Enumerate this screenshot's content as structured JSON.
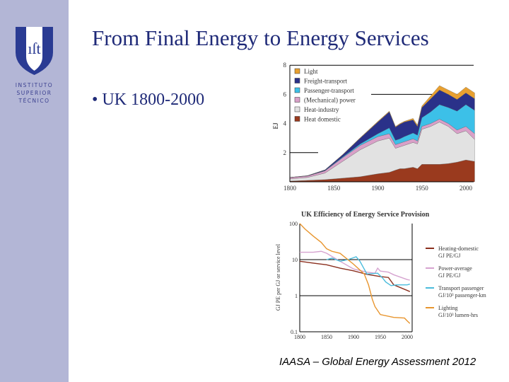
{
  "slide": {
    "title": "From Final Energy to Energy Services",
    "bullet": "UK 1800-2000",
    "footer": "IAASA – Global Energy Assessment 2012"
  },
  "logo": {
    "mark": "IST",
    "lines": [
      "INSTITUTO",
      "SUPERIOR",
      "TÉCNICO"
    ]
  },
  "colors": {
    "sidebar": "#b3b6d6",
    "title": "#1f2a78"
  },
  "chart_data": [
    {
      "type": "area",
      "stacked": true,
      "ylabel": "EJ",
      "ylim": [
        0,
        8
      ],
      "xlim": [
        1800,
        2010
      ],
      "xticks": [
        1800,
        1850,
        1900,
        1950,
        2000
      ],
      "yticks": [
        2,
        4,
        6,
        8
      ],
      "legend": "top-left",
      "x": [
        1800,
        1820,
        1840,
        1860,
        1880,
        1900,
        1913,
        1920,
        1925,
        1930,
        1940,
        1945,
        1950,
        1960,
        1970,
        1980,
        1990,
        2000,
        2010
      ],
      "series": [
        {
          "name": "Heat domestic",
          "color": "#9a3a1e",
          "values": [
            0.05,
            0.1,
            0.15,
            0.25,
            0.35,
            0.55,
            0.65,
            0.8,
            0.9,
            0.9,
            1.0,
            0.9,
            1.2,
            1.2,
            1.2,
            1.25,
            1.35,
            1.5,
            1.4
          ]
        },
        {
          "name": "Heat-industry",
          "color": "#e2e2e2",
          "values": [
            0.15,
            0.2,
            0.45,
            1.15,
            1.85,
            2.25,
            2.35,
            1.5,
            1.5,
            1.6,
            1.7,
            1.7,
            2.4,
            2.6,
            2.9,
            2.55,
            1.95,
            2.0,
            1.5
          ]
        },
        {
          "name": "(Mechanical) power",
          "color": "#d9a0c8",
          "values": [
            0.1,
            0.1,
            0.15,
            0.25,
            0.3,
            0.3,
            0.3,
            0.25,
            0.25,
            0.25,
            0.25,
            0.2,
            0.2,
            0.2,
            0.2,
            0.2,
            0.25,
            0.3,
            0.4
          ]
        },
        {
          "name": "Passenger-transport",
          "color": "#3cc0e8",
          "values": [
            0,
            0,
            0.02,
            0.05,
            0.1,
            0.2,
            0.4,
            0.3,
            0.3,
            0.35,
            0.4,
            0.4,
            0.6,
            0.8,
            1.0,
            1.1,
            1.3,
            1.5,
            1.6
          ]
        },
        {
          "name": "Freight-transport",
          "color": "#2a3189",
          "values": [
            0,
            0.02,
            0.05,
            0.15,
            0.4,
            0.8,
            1.1,
            0.9,
            1.0,
            1.0,
            0.9,
            0.6,
            0.7,
            0.9,
            1.0,
            0.9,
            0.8,
            0.8,
            0.8
          ]
        },
        {
          "name": "Light",
          "color": "#e8a030",
          "values": [
            0,
            0,
            0,
            0.02,
            0.03,
            0.05,
            0.05,
            0.05,
            0.05,
            0.05,
            0.1,
            0.1,
            0.1,
            0.2,
            0.3,
            0.3,
            0.35,
            0.4,
            0.4
          ]
        }
      ]
    },
    {
      "type": "line",
      "title": "UK Efficiency of Energy Service Provision",
      "ylabel": "GJ PE per GJ or service level",
      "yscale": "log",
      "ylim": [
        0.1,
        100
      ],
      "xlim": [
        1800,
        2010
      ],
      "xticks": [
        1800,
        1850,
        1900,
        1950,
        2000
      ],
      "yticks": [
        0.1,
        1,
        10,
        100
      ],
      "ytick_labels": [
        "0.1",
        "1",
        "10",
        "100"
      ],
      "legend": "right",
      "series": [
        {
          "name": "Heating-domestic",
          "unit": "GJ PE/GJ",
          "color": "#8b2f1e",
          "x": [
            1800,
            1825,
            1850,
            1875,
            1900,
            1925,
            1950,
            1965,
            1975,
            2000,
            2005
          ],
          "values": [
            9,
            8,
            7.2,
            5.8,
            4.9,
            3.9,
            3.4,
            3.2,
            2,
            1.4,
            1.3
          ]
        },
        {
          "name": "Power-average",
          "unit": "GJ PE/GJ",
          "color": "#d6a3d0",
          "x": [
            1800,
            1825,
            1840,
            1850,
            1875,
            1900,
            1925,
            1940,
            1945,
            1950,
            1965,
            1975,
            2000,
            2005
          ],
          "values": [
            16,
            16,
            17,
            15,
            9,
            5.5,
            4.5,
            4.2,
            5.8,
            4.8,
            4.5,
            3.8,
            2.8,
            2.7
          ]
        },
        {
          "name": "Transport passenger",
          "unit": "GJ/10³ passenger-km",
          "color": "#4bbcdc",
          "x": [
            1850,
            1860,
            1875,
            1890,
            1905,
            1912,
            1925,
            1945,
            1955,
            1960,
            1970,
            1980,
            2000,
            2005
          ],
          "values": [
            10,
            11,
            9,
            10,
            12,
            9,
            4,
            4.2,
            3,
            2.4,
            1.9,
            2,
            2,
            2.1
          ]
        },
        {
          "name": "Lighting",
          "unit": "GJ/10³ lumen-hrs",
          "color": "#e8952e",
          "x": [
            1800,
            1810,
            1825,
            1840,
            1850,
            1860,
            1875,
            1900,
            1920,
            1928,
            1935,
            1940,
            1950,
            1975,
            1995,
            2000,
            2005
          ],
          "values": [
            100,
            70,
            45,
            30,
            20,
            17,
            15,
            7.5,
            4,
            2,
            0.8,
            0.5,
            0.3,
            0.25,
            0.24,
            0.2,
            0.17
          ]
        }
      ]
    }
  ]
}
